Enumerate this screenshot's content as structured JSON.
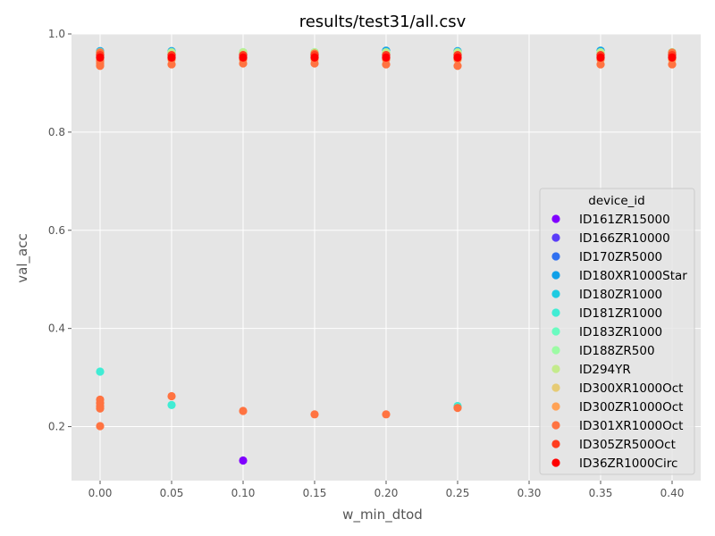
{
  "chart_data": {
    "type": "scatter",
    "title": "results/test31/all.csv",
    "xlabel": "w_min_dtod",
    "ylabel": "val_acc",
    "xlim": [
      -0.02,
      0.42
    ],
    "ylim": [
      0.09,
      1.0
    ],
    "xticks": [
      "0.00",
      "0.05",
      "0.10",
      "0.15",
      "0.20",
      "0.25",
      "0.30",
      "0.35",
      "0.40"
    ],
    "yticks": [
      "0.2",
      "0.4",
      "0.6",
      "0.8",
      "1.0"
    ],
    "grid": true,
    "legend": {
      "title": "device_id",
      "placement": "right"
    },
    "series": [
      {
        "name": "ID161ZR15000",
        "color": "#8000ff",
        "points": [
          [
            0.0,
            0.953
          ],
          [
            0.05,
            0.953
          ],
          [
            0.1,
            0.953
          ],
          [
            0.15,
            0.953
          ],
          [
            0.2,
            0.953
          ],
          [
            0.25,
            0.953
          ],
          [
            0.35,
            0.953
          ],
          [
            0.4,
            0.953
          ],
          [
            0.1,
            0.131
          ]
        ]
      },
      {
        "name": "ID166ZR10000",
        "color": "#5a3cf8",
        "points": [
          [
            0.0,
            0.958
          ],
          [
            0.05,
            0.958
          ],
          [
            0.1,
            0.958
          ],
          [
            0.15,
            0.958
          ],
          [
            0.2,
            0.958
          ],
          [
            0.25,
            0.958
          ],
          [
            0.35,
            0.958
          ],
          [
            0.4,
            0.958
          ]
        ]
      },
      {
        "name": "ID170ZR5000",
        "color": "#3070f0",
        "points": [
          [
            0.0,
            0.962
          ],
          [
            0.05,
            0.962
          ],
          [
            0.1,
            0.962
          ],
          [
            0.15,
            0.962
          ],
          [
            0.2,
            0.962
          ],
          [
            0.25,
            0.962
          ],
          [
            0.35,
            0.962
          ],
          [
            0.4,
            0.962
          ]
        ]
      },
      {
        "name": "ID180XR1000Star",
        "color": "#10a0e8",
        "points": [
          [
            0.0,
            0.965
          ],
          [
            0.05,
            0.965
          ],
          [
            0.1,
            0.96
          ],
          [
            0.15,
            0.96
          ],
          [
            0.2,
            0.966
          ],
          [
            0.25,
            0.965
          ],
          [
            0.35,
            0.966
          ],
          [
            0.4,
            0.96
          ]
        ]
      },
      {
        "name": "ID180ZR1000",
        "color": "#1ecbe1",
        "points": [
          [
            0.0,
            0.962
          ],
          [
            0.05,
            0.962
          ],
          [
            0.1,
            0.962
          ],
          [
            0.15,
            0.962
          ],
          [
            0.2,
            0.962
          ],
          [
            0.25,
            0.962
          ],
          [
            0.35,
            0.962
          ],
          [
            0.4,
            0.962
          ]
        ]
      },
      {
        "name": "ID181ZR1000",
        "color": "#40ecd4",
        "points": [
          [
            0.0,
            0.96
          ],
          [
            0.05,
            0.96
          ],
          [
            0.1,
            0.96
          ],
          [
            0.15,
            0.96
          ],
          [
            0.2,
            0.96
          ],
          [
            0.25,
            0.96
          ],
          [
            0.35,
            0.96
          ],
          [
            0.4,
            0.96
          ],
          [
            0.0,
            0.312
          ],
          [
            0.05,
            0.244
          ],
          [
            0.25,
            0.242
          ]
        ]
      },
      {
        "name": "ID183ZR1000",
        "color": "#6afbc0",
        "points": [
          [
            0.0,
            0.962
          ],
          [
            0.05,
            0.962
          ],
          [
            0.1,
            0.962
          ],
          [
            0.15,
            0.962
          ],
          [
            0.2,
            0.962
          ],
          [
            0.25,
            0.962
          ],
          [
            0.35,
            0.962
          ],
          [
            0.4,
            0.962
          ]
        ]
      },
      {
        "name": "ID188ZR500",
        "color": "#9cfba4",
        "points": [
          [
            0.0,
            0.963
          ],
          [
            0.05,
            0.963
          ],
          [
            0.1,
            0.963
          ],
          [
            0.15,
            0.963
          ],
          [
            0.2,
            0.963
          ],
          [
            0.25,
            0.963
          ],
          [
            0.35,
            0.963
          ],
          [
            0.4,
            0.963
          ]
        ]
      },
      {
        "name": "ID294YR",
        "color": "#c4eb8c",
        "points": [
          [
            0.0,
            0.962
          ],
          [
            0.05,
            0.962
          ],
          [
            0.1,
            0.962
          ],
          [
            0.15,
            0.962
          ],
          [
            0.2,
            0.962
          ],
          [
            0.25,
            0.962
          ],
          [
            0.35,
            0.962
          ],
          [
            0.4,
            0.962
          ]
        ]
      },
      {
        "name": "ID300XR1000Oct",
        "color": "#e6cb75",
        "points": [
          [
            0.0,
            0.955
          ],
          [
            0.05,
            0.955
          ],
          [
            0.1,
            0.955
          ],
          [
            0.15,
            0.955
          ],
          [
            0.2,
            0.955
          ],
          [
            0.25,
            0.955
          ],
          [
            0.35,
            0.955
          ],
          [
            0.4,
            0.955
          ]
        ]
      },
      {
        "name": "ID300ZR1000Oct",
        "color": "#ffa256",
        "points": [
          [
            0.0,
            0.948
          ],
          [
            0.05,
            0.948
          ],
          [
            0.1,
            0.948
          ],
          [
            0.15,
            0.948
          ],
          [
            0.2,
            0.948
          ],
          [
            0.25,
            0.948
          ],
          [
            0.35,
            0.948
          ],
          [
            0.4,
            0.948
          ]
        ]
      },
      {
        "name": "ID301XR1000Oct",
        "color": "#ff7341",
        "points": [
          [
            0.0,
            0.935
          ],
          [
            0.0,
            0.94
          ],
          [
            0.0,
            0.945
          ],
          [
            0.0,
            0.962
          ],
          [
            0.05,
            0.938
          ],
          [
            0.05,
            0.95
          ],
          [
            0.1,
            0.94
          ],
          [
            0.1,
            0.95
          ],
          [
            0.15,
            0.94
          ],
          [
            0.15,
            0.96
          ],
          [
            0.2,
            0.938
          ],
          [
            0.2,
            0.95
          ],
          [
            0.25,
            0.935
          ],
          [
            0.25,
            0.95
          ],
          [
            0.35,
            0.938
          ],
          [
            0.35,
            0.95
          ],
          [
            0.4,
            0.938
          ],
          [
            0.4,
            0.962
          ],
          [
            0.0,
            0.255
          ],
          [
            0.0,
            0.248
          ],
          [
            0.0,
            0.242
          ],
          [
            0.0,
            0.237
          ],
          [
            0.0,
            0.201
          ],
          [
            0.05,
            0.262
          ],
          [
            0.1,
            0.232
          ],
          [
            0.15,
            0.225
          ],
          [
            0.2,
            0.225
          ],
          [
            0.25,
            0.238
          ]
        ]
      },
      {
        "name": "ID305ZR500Oct",
        "color": "#ff3d1f",
        "points": [
          [
            0.0,
            0.957
          ],
          [
            0.05,
            0.957
          ],
          [
            0.1,
            0.957
          ],
          [
            0.15,
            0.957
          ],
          [
            0.2,
            0.957
          ],
          [
            0.25,
            0.957
          ],
          [
            0.35,
            0.957
          ],
          [
            0.4,
            0.957
          ]
        ]
      },
      {
        "name": "ID36ZR1000Circ",
        "color": "#ff0000",
        "points": [
          [
            0.0,
            0.952
          ],
          [
            0.05,
            0.952
          ],
          [
            0.1,
            0.952
          ],
          [
            0.15,
            0.952
          ],
          [
            0.2,
            0.952
          ],
          [
            0.25,
            0.952
          ],
          [
            0.35,
            0.952
          ],
          [
            0.4,
            0.952
          ]
        ]
      }
    ]
  }
}
